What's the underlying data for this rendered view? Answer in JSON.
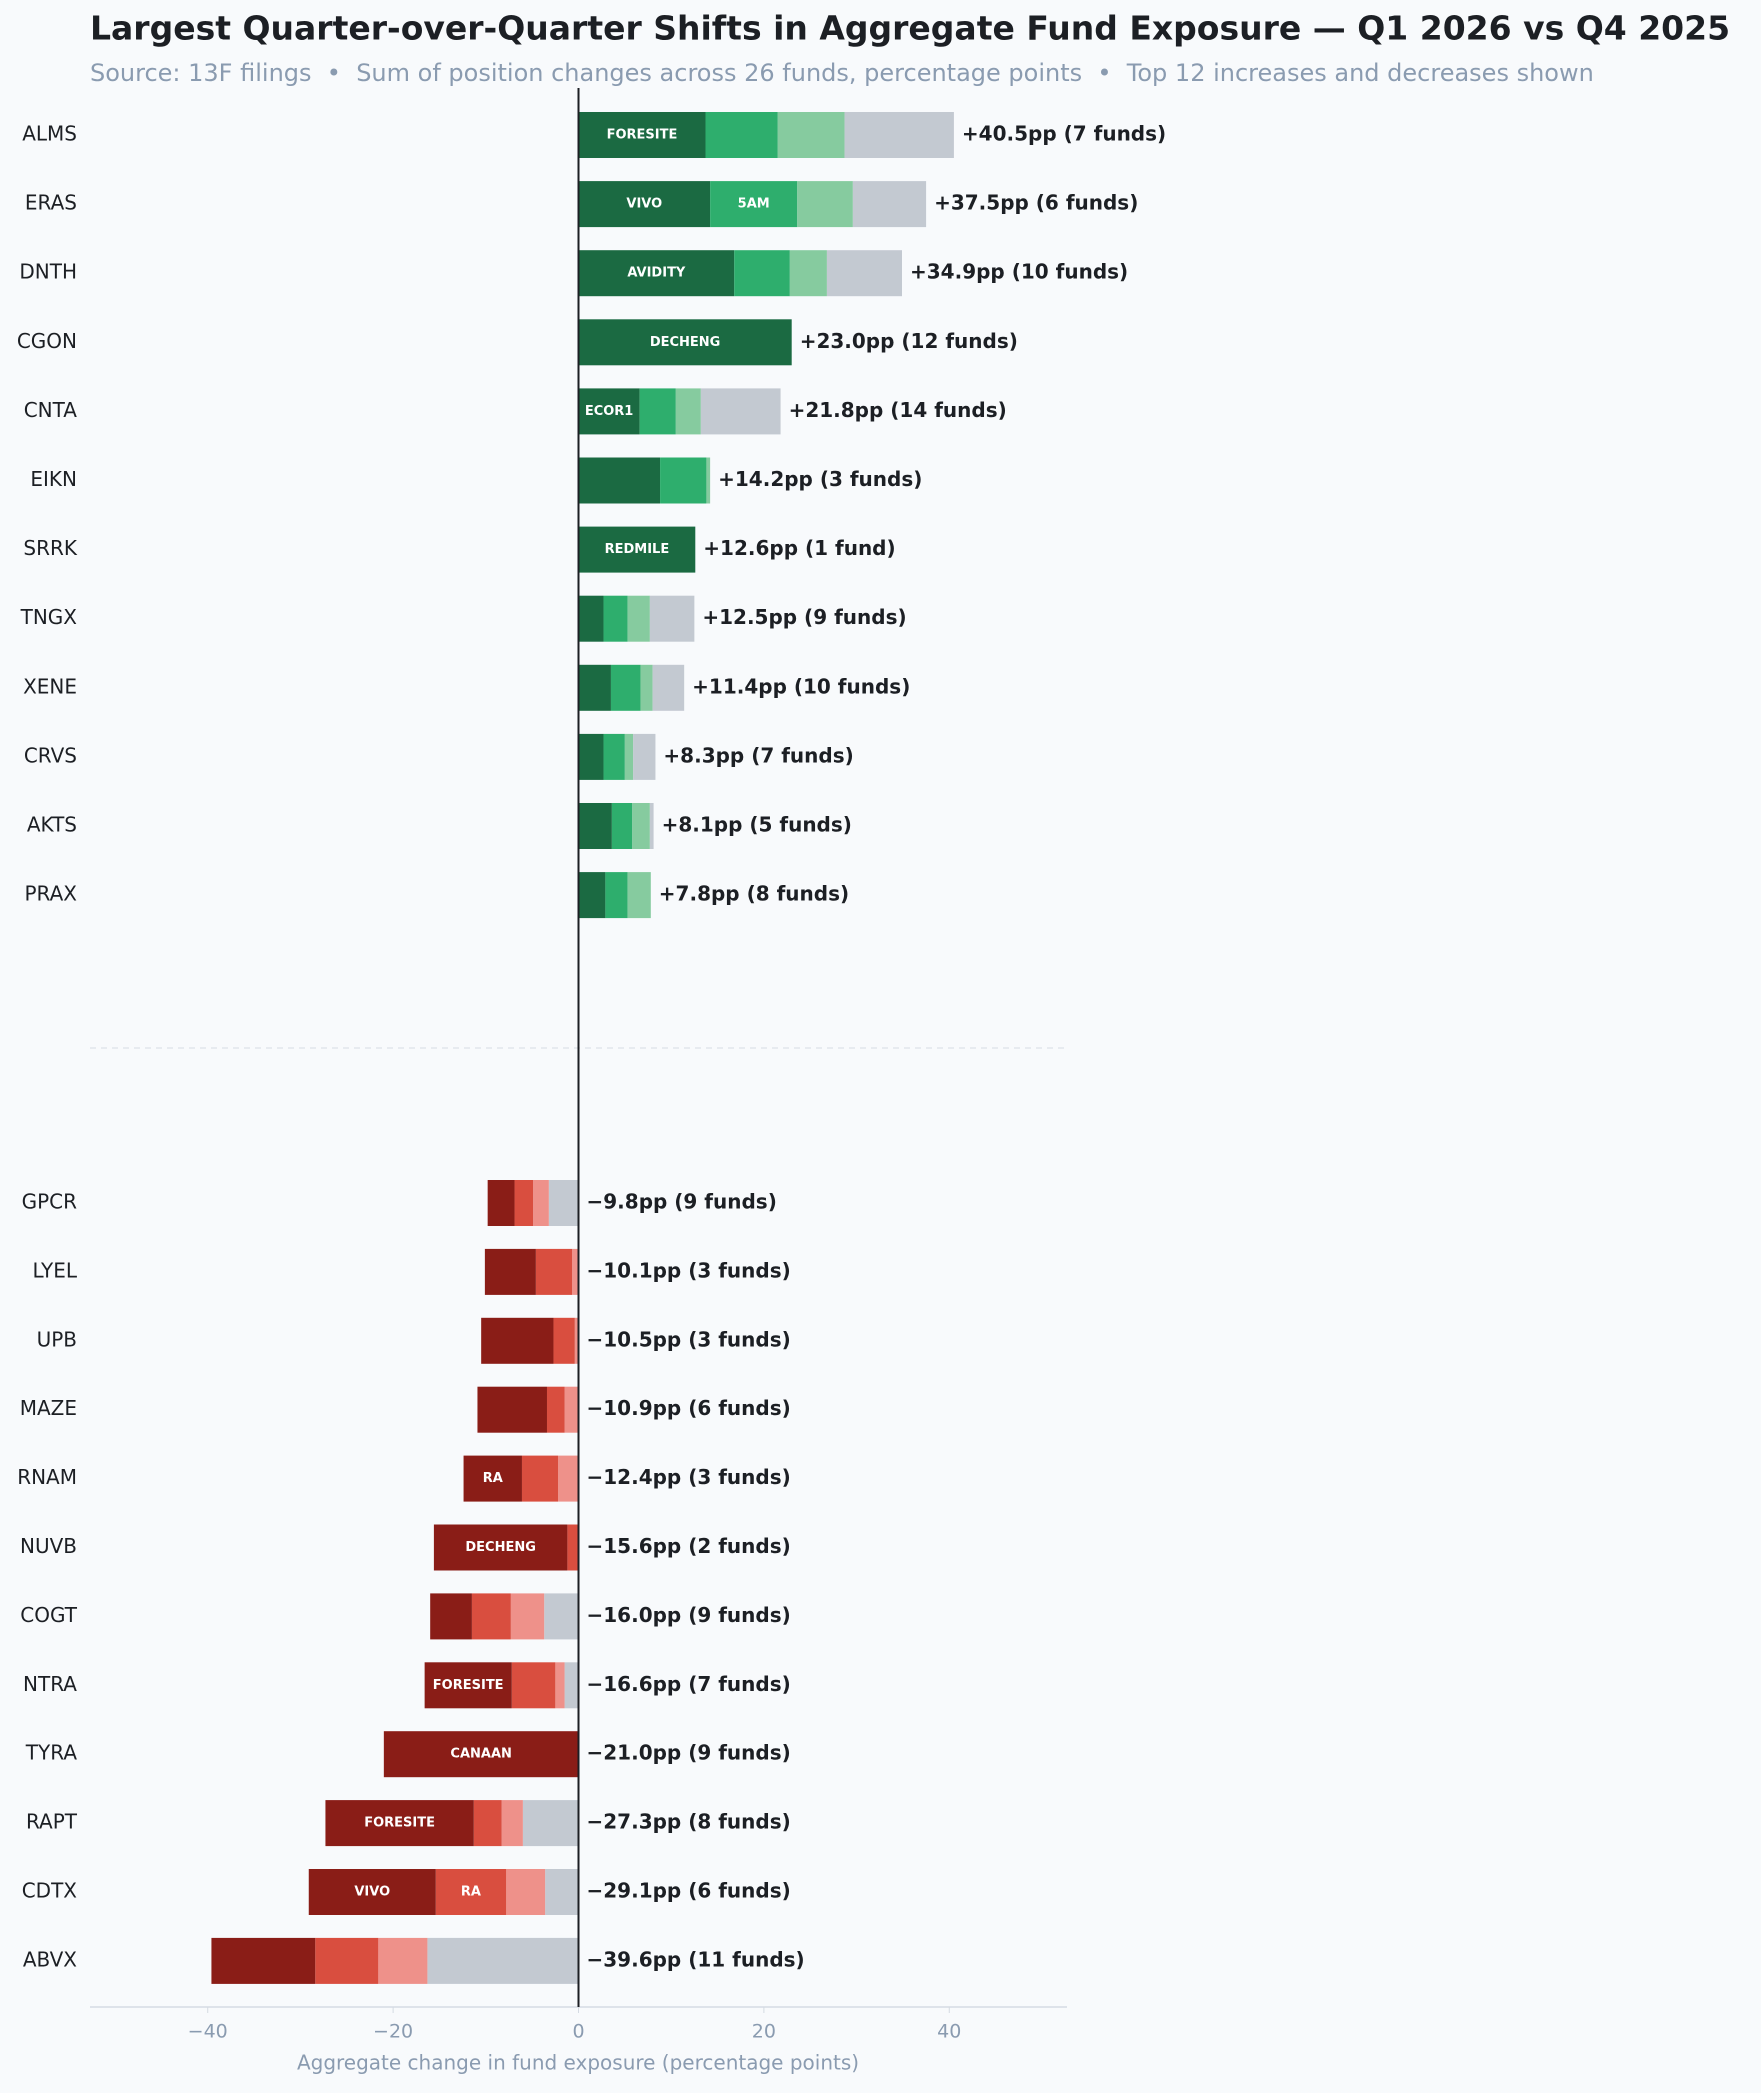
{
  "chart_data": {
    "type": "diverging-stacked-bar",
    "title": "Largest Quarter-over-Quarter Shifts in Aggregate Fund Exposure — Q1 2026 vs Q4 2025",
    "subtitle": "Source: 13F filings  •  Sum of position changes across 26 funds, percentage points  •  Top 12 increases and decreases shown",
    "x_label": "Aggregate change in fund exposure (percentage points)",
    "categories": [
      "ALMS",
      "ERAS",
      "DNTH",
      "CGON",
      "CNTA",
      "EIKN",
      "SRRK",
      "TNGX",
      "XENE",
      "CRVS",
      "AKTS",
      "PRAX",
      "GPCR",
      "LYEL",
      "UPB",
      "MAZE",
      "RNAM",
      "NUVB",
      "COGT",
      "NTRA",
      "TYRA",
      "RAPT",
      "CDTX",
      "ABVX"
    ],
    "series": [
      {
        "color": "#1b6a42",
        "neg_color": "#8a1d17",
        "values": [
          13.7,
          14.2,
          16.8,
          23.0,
          6.6,
          8.8,
          12.6,
          2.7,
          3.5,
          2.7,
          3.6,
          2.9,
          -2.9,
          -5.5,
          -7.8,
          -7.5,
          -6.3,
          -14.4,
          -4.5,
          -9.4,
          -21.0,
          -16.0,
          -13.7,
          -11.2
        ],
        "labels": [
          "FORESITE",
          "VIVO",
          "AVIDITY",
          "DECHENG",
          "ECOR1",
          null,
          "REDMILE",
          null,
          null,
          null,
          null,
          null,
          null,
          null,
          null,
          null,
          "RA",
          "DECHENG",
          null,
          "FORESITE",
          "CANAAN",
          "FORESITE",
          "VIVO",
          null
        ]
      },
      {
        "color": "#2eae6d",
        "neg_color": "#d94e3f",
        "values": [
          7.8,
          9.4,
          6.0,
          null,
          3.9,
          5.0,
          null,
          2.6,
          3.2,
          2.3,
          2.2,
          2.4,
          -2.0,
          -3.9,
          -2.3,
          -1.9,
          -3.9,
          -1.2,
          -4.2,
          -4.7,
          null,
          -3.0,
          -7.6,
          -6.8
        ],
        "labels": [
          null,
          "5AM",
          null,
          null,
          null,
          null,
          null,
          null,
          null,
          null,
          null,
          null,
          null,
          null,
          null,
          null,
          null,
          null,
          null,
          null,
          null,
          null,
          "RA",
          null
        ]
      },
      {
        "color": "#86cb9f",
        "neg_color": "#ee918a",
        "values": [
          7.2,
          6.0,
          4.0,
          null,
          2.7,
          0.4,
          null,
          2.4,
          1.3,
          0.9,
          1.9,
          2.5,
          -1.7,
          -0.7,
          -0.4,
          -1.5,
          -2.2,
          null,
          -3.6,
          -1.0,
          null,
          -2.3,
          -4.2,
          -5.3
        ]
      },
      {
        "color": "#c3c9d1",
        "neg_color": "#c3c9d1",
        "values": [
          11.8,
          7.9,
          8.1,
          null,
          8.6,
          null,
          null,
          4.8,
          3.4,
          2.4,
          0.4,
          null,
          -3.2,
          null,
          null,
          null,
          null,
          null,
          -3.7,
          -1.5,
          null,
          -6.0,
          -3.6,
          -16.3
        ]
      }
    ],
    "totals": [
      40.5,
      37.5,
      34.9,
      23.0,
      21.8,
      14.2,
      12.6,
      12.5,
      11.4,
      8.3,
      8.1,
      7.8,
      -9.8,
      -10.1,
      -10.5,
      -10.9,
      -12.4,
      -15.6,
      -16.0,
      -16.6,
      -21.0,
      -27.3,
      -29.1,
      -39.6
    ],
    "value_labels": [
      "+40.5pp  (7 funds)",
      "+37.5pp  (6 funds)",
      "+34.9pp  (10 funds)",
      "+23.0pp  (12 funds)",
      "+21.8pp  (14 funds)",
      "+14.2pp  (3 funds)",
      "+12.6pp  (1 fund)",
      "+12.5pp  (9 funds)",
      "+11.4pp  (10 funds)",
      "+8.3pp  (7 funds)",
      "+8.1pp  (5 funds)",
      "+7.8pp  (8 funds)",
      "−9.8pp  (9 funds)",
      "−10.1pp  (3 funds)",
      "−10.5pp  (3 funds)",
      "−10.9pp  (6 funds)",
      "−12.4pp  (3 funds)",
      "−15.6pp  (2 funds)",
      "−16.0pp  (9 funds)",
      "−16.6pp  (7 funds)",
      "−21.0pp  (9 funds)",
      "−27.3pp  (8 funds)",
      "−29.1pp  (6 funds)",
      "−39.6pp  (11 funds)"
    ],
    "xlim": [
      -52.7,
      52.7
    ],
    "xticks": [
      {
        "value": -40,
        "label": "−40"
      },
      {
        "value": -20,
        "label": "−20"
      },
      0,
      20,
      40
    ]
  }
}
